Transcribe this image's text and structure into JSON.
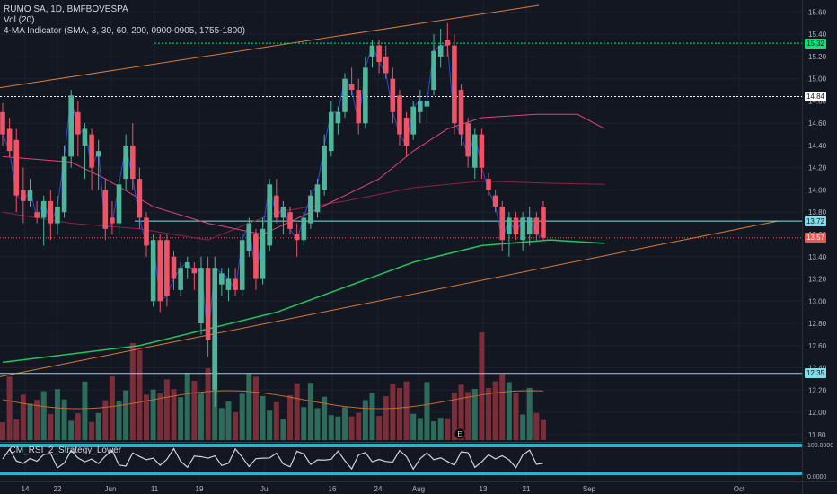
{
  "legend": {
    "symbol_line": "RUMO SA, 1D, BMFBOVESPA",
    "volume_line": "Vol (20)",
    "ma_line": "4-MA Indicator (SMA, 3, 30, 60, 200, 0900-0905, 1755-1800)"
  },
  "rsi_panel": {
    "title": "_CM_RSI_2_Strategy_Lower",
    "top_label": "100.0000",
    "bottom_label": "0.0000"
  },
  "price_labels": [
    {
      "value": "15.32",
      "color": "#00e676",
      "text_color": "#131722"
    },
    {
      "value": "14.84",
      "color": "#ffffff",
      "text_color": "#131722"
    },
    {
      "value": "13.72",
      "color": "#80deea",
      "text_color": "#131722"
    },
    {
      "value": "13.57",
      "color": "#ef5350",
      "text_color": "#ffffff"
    },
    {
      "value": "12.35",
      "color": "#80deea",
      "text_color": "#131722"
    }
  ],
  "colors": {
    "background": "#131722",
    "up": "#4fb59a",
    "down": "#ef5365",
    "vol_up": "#2e6b5a",
    "vol_down": "#7a2e3a",
    "trendline": "#d57c3a",
    "sma30": "#e0457b",
    "sma60": "#8b2346",
    "sma200": "#22c55e",
    "sma3": "#2a4bd7"
  },
  "chart_data": {
    "type": "candlestick",
    "y_axis_ticks": [
      "15.60",
      "15.40",
      "15.20",
      "15.00",
      "14.80",
      "14.60",
      "14.40",
      "14.20",
      "14.00",
      "13.80",
      "13.60",
      "13.40",
      "13.20",
      "13.00",
      "12.80",
      "12.60",
      "12.40",
      "12.20",
      "12.00",
      "11.80"
    ],
    "ylim": [
      11.75,
      15.66
    ],
    "x_axis_ticks": [
      "14",
      "22",
      "Jun",
      "11",
      "19",
      "Jul",
      "16",
      "24",
      "Aug",
      "13",
      "21",
      "Sep",
      "Oct"
    ],
    "horizontal_levels": [
      15.32,
      14.84,
      13.72,
      13.57,
      12.35
    ],
    "candles": [
      {
        "o": 14.7,
        "h": 14.78,
        "l": 14.4,
        "c": 14.5
      },
      {
        "o": 14.55,
        "h": 14.65,
        "l": 14.3,
        "c": 14.35
      },
      {
        "o": 14.45,
        "h": 14.55,
        "l": 13.8,
        "c": 13.95
      },
      {
        "o": 14.0,
        "h": 14.2,
        "l": 13.7,
        "c": 13.9
      },
      {
        "o": 13.9,
        "h": 14.1,
        "l": 13.85,
        "c": 14.0
      },
      {
        "o": 13.8,
        "h": 13.9,
        "l": 13.7,
        "c": 13.75
      },
      {
        "o": 13.75,
        "h": 13.95,
        "l": 13.5,
        "c": 13.9
      },
      {
        "o": 13.9,
        "h": 14.0,
        "l": 13.55,
        "c": 13.7
      },
      {
        "o": 13.7,
        "h": 13.95,
        "l": 13.6,
        "c": 13.85
      },
      {
        "o": 13.8,
        "h": 14.4,
        "l": 13.75,
        "c": 14.3
      },
      {
        "o": 14.3,
        "h": 14.9,
        "l": 14.2,
        "c": 14.85
      },
      {
        "o": 14.7,
        "h": 14.8,
        "l": 14.3,
        "c": 14.5
      },
      {
        "o": 14.4,
        "h": 14.6,
        "l": 14.1,
        "c": 14.55
      },
      {
        "o": 14.5,
        "h": 14.55,
        "l": 14.0,
        "c": 14.2
      },
      {
        "o": 14.3,
        "h": 14.45,
        "l": 14.0,
        "c": 14.35
      },
      {
        "o": 14.0,
        "h": 14.1,
        "l": 13.55,
        "c": 13.65
      },
      {
        "o": 13.75,
        "h": 13.9,
        "l": 13.6,
        "c": 13.7
      },
      {
        "o": 13.7,
        "h": 14.1,
        "l": 13.6,
        "c": 14.05
      },
      {
        "o": 14.1,
        "h": 14.5,
        "l": 14.0,
        "c": 14.4
      },
      {
        "o": 14.4,
        "h": 14.6,
        "l": 14.0,
        "c": 14.1
      },
      {
        "o": 14.1,
        "h": 14.2,
        "l": 13.65,
        "c": 13.75
      },
      {
        "o": 13.75,
        "h": 13.8,
        "l": 13.4,
        "c": 13.5
      },
      {
        "o": 13.0,
        "h": 13.6,
        "l": 12.95,
        "c": 13.55
      },
      {
        "o": 13.55,
        "h": 13.6,
        "l": 12.9,
        "c": 13.0
      },
      {
        "o": 13.55,
        "h": 13.6,
        "l": 12.95,
        "c": 13.05
      },
      {
        "o": 13.4,
        "h": 13.45,
        "l": 13.1,
        "c": 13.2
      },
      {
        "o": 13.1,
        "h": 13.35,
        "l": 13.05,
        "c": 13.3
      },
      {
        "o": 13.3,
        "h": 13.4,
        "l": 13.2,
        "c": 13.35
      },
      {
        "o": 13.3,
        "h": 13.35,
        "l": 13.1,
        "c": 13.25
      },
      {
        "o": 12.8,
        "h": 13.4,
        "l": 12.7,
        "c": 13.3
      },
      {
        "o": 13.3,
        "h": 13.4,
        "l": 12.5,
        "c": 12.65
      },
      {
        "o": 12.2,
        "h": 13.4,
        "l": 12.05,
        "c": 13.3
      },
      {
        "o": 13.15,
        "h": 13.3,
        "l": 13.05,
        "c": 13.25
      },
      {
        "o": 13.1,
        "h": 13.3,
        "l": 13.0,
        "c": 13.2
      },
      {
        "o": 13.2,
        "h": 13.3,
        "l": 13.05,
        "c": 13.1
      },
      {
        "o": 13.1,
        "h": 13.6,
        "l": 13.05,
        "c": 13.55
      },
      {
        "o": 13.45,
        "h": 13.75,
        "l": 13.4,
        "c": 13.7
      },
      {
        "o": 13.6,
        "h": 13.65,
        "l": 13.1,
        "c": 13.2
      },
      {
        "o": 13.2,
        "h": 13.75,
        "l": 13.15,
        "c": 13.65
      },
      {
        "o": 13.5,
        "h": 14.1,
        "l": 13.45,
        "c": 14.05
      },
      {
        "o": 13.95,
        "h": 14.1,
        "l": 13.7,
        "c": 13.75
      },
      {
        "o": 13.75,
        "h": 13.9,
        "l": 13.6,
        "c": 13.85
      },
      {
        "o": 13.8,
        "h": 13.85,
        "l": 13.6,
        "c": 13.65
      },
      {
        "o": 13.6,
        "h": 13.7,
        "l": 13.4,
        "c": 13.55
      },
      {
        "o": 13.55,
        "h": 13.8,
        "l": 13.5,
        "c": 13.75
      },
      {
        "o": 13.7,
        "h": 14.0,
        "l": 13.65,
        "c": 13.95
      },
      {
        "o": 13.8,
        "h": 14.1,
        "l": 13.75,
        "c": 14.05
      },
      {
        "o": 14.0,
        "h": 14.5,
        "l": 13.95,
        "c": 14.4
      },
      {
        "o": 14.35,
        "h": 14.8,
        "l": 14.3,
        "c": 14.7
      },
      {
        "o": 14.6,
        "h": 14.75,
        "l": 14.5,
        "c": 14.7
      },
      {
        "o": 14.7,
        "h": 15.05,
        "l": 14.65,
        "c": 15.0
      },
      {
        "o": 14.95,
        "h": 15.1,
        "l": 14.85,
        "c": 14.9
      },
      {
        "o": 14.9,
        "h": 15.0,
        "l": 14.5,
        "c": 14.6
      },
      {
        "o": 14.6,
        "h": 15.2,
        "l": 14.55,
        "c": 15.1
      },
      {
        "o": 15.2,
        "h": 15.35,
        "l": 15.1,
        "c": 15.3
      },
      {
        "o": 15.3,
        "h": 15.35,
        "l": 15.05,
        "c": 15.15
      },
      {
        "o": 15.2,
        "h": 15.3,
        "l": 15.0,
        "c": 15.05
      },
      {
        "o": 15.0,
        "h": 15.1,
        "l": 14.6,
        "c": 14.7
      },
      {
        "o": 14.85,
        "h": 14.9,
        "l": 14.4,
        "c": 14.5
      },
      {
        "o": 14.65,
        "h": 14.7,
        "l": 14.3,
        "c": 14.4
      },
      {
        "o": 14.5,
        "h": 14.8,
        "l": 14.45,
        "c": 14.75
      },
      {
        "o": 14.7,
        "h": 14.9,
        "l": 14.6,
        "c": 14.8
      },
      {
        "o": 14.75,
        "h": 14.95,
        "l": 14.6,
        "c": 14.8
      },
      {
        "o": 14.9,
        "h": 15.4,
        "l": 14.85,
        "c": 15.25
      },
      {
        "o": 15.2,
        "h": 15.45,
        "l": 15.1,
        "c": 15.3
      },
      {
        "o": 15.35,
        "h": 15.5,
        "l": 15.2,
        "c": 15.3
      },
      {
        "o": 15.3,
        "h": 15.4,
        "l": 14.5,
        "c": 14.6
      },
      {
        "o": 14.9,
        "h": 14.95,
        "l": 14.4,
        "c": 14.5
      },
      {
        "o": 14.6,
        "h": 14.65,
        "l": 14.2,
        "c": 14.3
      },
      {
        "o": 14.2,
        "h": 14.55,
        "l": 14.1,
        "c": 14.5
      },
      {
        "o": 14.5,
        "h": 14.55,
        "l": 14.1,
        "c": 14.2
      },
      {
        "o": 14.1,
        "h": 14.15,
        "l": 13.95,
        "c": 14.0
      },
      {
        "o": 13.95,
        "h": 14.0,
        "l": 13.8,
        "c": 13.85
      },
      {
        "o": 13.85,
        "h": 13.9,
        "l": 13.45,
        "c": 13.55
      },
      {
        "o": 13.6,
        "h": 13.8,
        "l": 13.4,
        "c": 13.75
      },
      {
        "o": 13.75,
        "h": 13.8,
        "l": 13.55,
        "c": 13.6
      },
      {
        "o": 13.55,
        "h": 13.8,
        "l": 13.45,
        "c": 13.75
      },
      {
        "o": 13.6,
        "h": 13.85,
        "l": 13.5,
        "c": 13.75
      },
      {
        "o": 13.75,
        "h": 13.8,
        "l": 13.55,
        "c": 13.6
      },
      {
        "o": 13.85,
        "h": 13.9,
        "l": 13.55,
        "c": 13.57
      }
    ],
    "volume_scale_ticks": [
      "12.40",
      "12.20",
      "12.00",
      "11.80"
    ],
    "sma_lines": [
      {
        "name": "SMA 200",
        "color": "#22c55e",
        "points": [
          [
            0,
            12.45
          ],
          [
            20,
            12.6
          ],
          [
            40,
            12.9
          ],
          [
            60,
            13.35
          ],
          [
            70,
            13.5
          ],
          [
            80,
            13.55
          ],
          [
            88,
            13.52
          ]
        ]
      },
      {
        "name": "SMA 60",
        "color": "#8b2346",
        "points": [
          [
            0,
            13.8
          ],
          [
            10,
            13.7
          ],
          [
            20,
            13.65
          ],
          [
            30,
            13.55
          ],
          [
            40,
            13.8
          ],
          [
            50,
            13.9
          ],
          [
            60,
            14.02
          ],
          [
            70,
            14.08
          ],
          [
            80,
            14.06
          ],
          [
            88,
            14.05
          ]
        ]
      },
      {
        "name": "SMA 30",
        "color": "#e0457b",
        "points": [
          [
            0,
            14.3
          ],
          [
            10,
            14.25
          ],
          [
            15,
            14.1
          ],
          [
            22,
            13.85
          ],
          [
            30,
            13.7
          ],
          [
            38,
            13.6
          ],
          [
            45,
            13.8
          ],
          [
            50,
            13.95
          ],
          [
            55,
            14.1
          ],
          [
            60,
            14.35
          ],
          [
            65,
            14.55
          ],
          [
            70,
            14.65
          ],
          [
            78,
            14.68
          ],
          [
            84,
            14.68
          ],
          [
            88,
            14.55
          ]
        ]
      }
    ]
  }
}
